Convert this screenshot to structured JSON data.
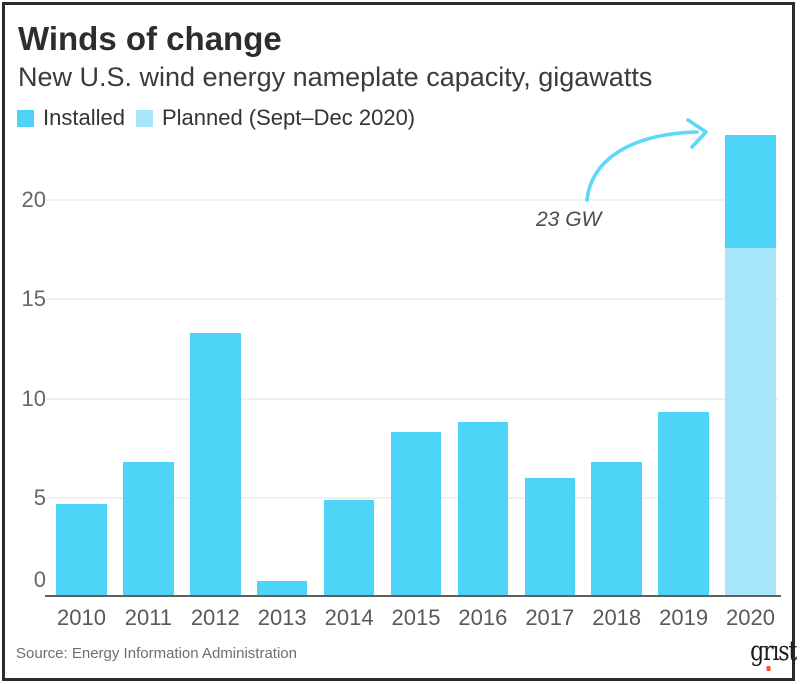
{
  "header": {
    "title": "Winds of change",
    "subtitle": "New U.S. wind energy nameplate capacity, gigawatts"
  },
  "legend": {
    "items": [
      {
        "label": "Installed",
        "color": "#4ed4f7"
      },
      {
        "label": "Planned (Sept–Dec 2020)",
        "color": "#a8e7fb"
      }
    ]
  },
  "annotation": {
    "label": "23 GW"
  },
  "footer": {
    "source": "Source: Energy Information Administration",
    "brand": "grist",
    "brand_parts": {
      "pre": "gr",
      "i": "ı",
      "post": "st"
    },
    "brand_dot_color": "#f15a24"
  },
  "colors": {
    "installed": "#4ed4f7",
    "planned": "#a8e7fb",
    "arrow": "#5cd8f8",
    "grid": "#f0f0f0",
    "axis": "#5f5f5f"
  },
  "chart_data": {
    "type": "bar",
    "stacked": true,
    "title": "Winds of change",
    "subtitle": "New U.S. wind energy nameplate capacity, gigawatts",
    "ylabel": "gigawatts",
    "categories": [
      "2010",
      "2011",
      "2012",
      "2013",
      "2014",
      "2015",
      "2016",
      "2017",
      "2018",
      "2019",
      "2020"
    ],
    "series": [
      {
        "name": "Installed",
        "values": [
          4.7,
          6.8,
          13.3,
          0.8,
          4.9,
          8.3,
          8.8,
          6.0,
          6.8,
          9.3,
          5.7
        ]
      },
      {
        "name": "Planned (Sept–Dec 2020)",
        "values": [
          0,
          0,
          0,
          0,
          0,
          0,
          0,
          0,
          0,
          0,
          17.6
        ]
      }
    ],
    "stack_note": "2020 bar: planned segment (17.6 GW) drawn from 0 at the bottom, installed segment (5.7 GW) stacked on top, total ≈ 23 GW",
    "yticks": [
      0,
      5,
      10,
      15,
      20
    ],
    "ylim": [
      0,
      23.5
    ],
    "grid": "horizontal",
    "legend_position": "top-left",
    "annotations": [
      {
        "text": "23 GW",
        "target": "2020 bar"
      }
    ]
  }
}
